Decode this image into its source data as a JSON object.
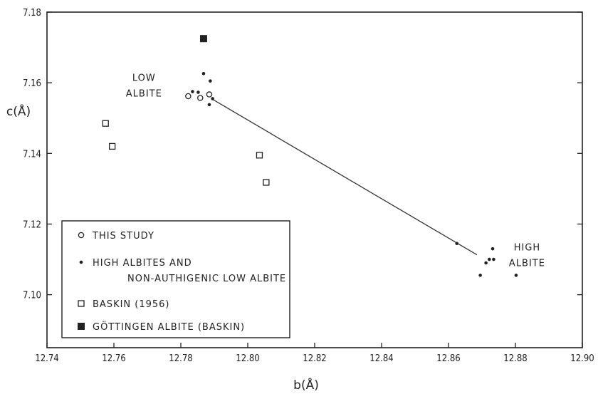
{
  "chart_data": {
    "type": "scatter",
    "xlabel": "b(Å)",
    "ylabel": "c(Å)",
    "xlim": [
      12.74,
      12.9
    ],
    "ylim": [
      7.085,
      7.18
    ],
    "x_ticks": [
      "12.74",
      "12.76",
      "12.78",
      "12.80",
      "12.82",
      "12.84",
      "12.86",
      "12.88",
      "12.90"
    ],
    "y_ticks": [
      "7.10",
      "7.12",
      "7.14",
      "7.16",
      "7.18"
    ],
    "grid": false,
    "legend_position": "bottom-left",
    "annotations": [
      {
        "lines": [
          "LOW",
          "ALBITE"
        ],
        "x": 12.769,
        "y": 7.1605
      },
      {
        "lines": [
          "HIGH",
          "ALBITE"
        ],
        "x": 12.8835,
        "y": 7.1125
      }
    ],
    "trend_line": {
      "x": [
        12.7895,
        12.8685
      ],
      "y": [
        7.1553,
        7.1113
      ]
    },
    "series": [
      {
        "name": "THIS STUDY",
        "marker": "open-circle",
        "points": [
          [
            12.7822,
            7.1562
          ],
          [
            12.7858,
            7.1557
          ],
          [
            12.7885,
            7.1567
          ]
        ]
      },
      {
        "name": "HIGH ALBITES AND NON-AUTHIGENIC LOW ALBITE",
        "marker": "filled-dot",
        "points": [
          [
            12.7835,
            7.1575
          ],
          [
            12.7852,
            7.1573
          ],
          [
            12.7868,
            7.1626
          ],
          [
            12.7888,
            7.1605
          ],
          [
            12.7885,
            7.1538
          ],
          [
            12.7895,
            7.1555
          ],
          [
            12.8625,
            7.1145
          ],
          [
            12.8695,
            7.1055
          ],
          [
            12.8712,
            7.109
          ],
          [
            12.8722,
            7.11
          ],
          [
            12.8732,
            7.113
          ],
          [
            12.8735,
            7.11
          ],
          [
            12.8802,
            7.1055
          ]
        ]
      },
      {
        "name": "BASKIN (1956)",
        "marker": "open-square",
        "points": [
          [
            12.7575,
            7.1485
          ],
          [
            12.7595,
            7.142
          ],
          [
            12.8035,
            7.1395
          ],
          [
            12.8055,
            7.1318
          ]
        ]
      },
      {
        "name": "GÖTTINGEN ALBITE (BASKIN)",
        "marker": "filled-square",
        "points": [
          [
            12.7868,
            7.1725
          ]
        ]
      }
    ]
  }
}
